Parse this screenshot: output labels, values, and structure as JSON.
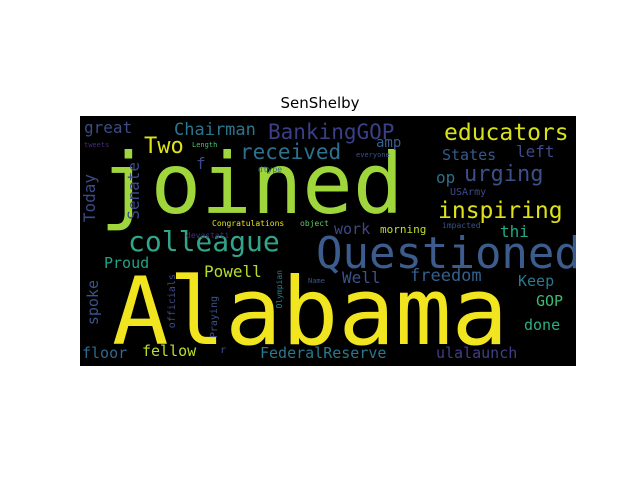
{
  "figure": {
    "title": "SenShelby"
  },
  "wordcloud": {
    "colormap": "viridis",
    "background": "#000000",
    "words": [
      {
        "text": "Alabama",
        "color": "#f0e51f"
      },
      {
        "text": "joined",
        "color": "#9fd63b"
      },
      {
        "text": "Questioned",
        "color": "#3b5c8c"
      },
      {
        "text": "colleague",
        "color": "#31a48a"
      },
      {
        "text": "inspiring",
        "color": "#dfe218"
      },
      {
        "text": "educators",
        "color": "#d8e21c"
      },
      {
        "text": "urging",
        "color": "#3c4f8a"
      },
      {
        "text": "received",
        "color": "#2c718e"
      },
      {
        "text": "BankingGOP",
        "color": "#3a3f86"
      },
      {
        "text": "Chairman",
        "color": "#2b758e"
      },
      {
        "text": "great",
        "color": "#3c4c87"
      },
      {
        "text": "Two",
        "color": "#dde318"
      },
      {
        "text": "Senate",
        "color": "#3b4a8a"
      },
      {
        "text": "Today",
        "color": "#3c4b88"
      },
      {
        "text": "States",
        "color": "#36598c"
      },
      {
        "text": "left",
        "color": "#3e4989"
      },
      {
        "text": "op",
        "color": "#2d708e"
      },
      {
        "text": "amp",
        "color": "#3a5e8c"
      },
      {
        "text": "thi",
        "color": "#22a884"
      },
      {
        "text": "work",
        "color": "#3f4788"
      },
      {
        "text": "Proud",
        "color": "#20a386"
      },
      {
        "text": "Powell",
        "color": "#b5de2b"
      },
      {
        "text": "Well",
        "color": "#3b528b"
      },
      {
        "text": "freedom",
        "color": "#34608d"
      },
      {
        "text": "Keep",
        "color": "#2a788e"
      },
      {
        "text": "spoke",
        "color": "#3a548c"
      },
      {
        "text": "GOP",
        "color": "#3bbb75"
      },
      {
        "text": "done",
        "color": "#2ab07f"
      },
      {
        "text": "floor",
        "color": "#30688e"
      },
      {
        "text": "fellow",
        "color": "#b8de29"
      },
      {
        "text": "FederalReserve",
        "color": "#2a788e"
      },
      {
        "text": "ulalaunch",
        "color": "#433e85"
      },
      {
        "text": "morning",
        "color": "#c2df23"
      },
      {
        "text": "f",
        "color": "#3e4989"
      },
      {
        "text": "USArmy",
        "color": "#3e4989"
      },
      {
        "text": "Congratulations",
        "color": "#e5e419"
      },
      {
        "text": "object",
        "color": "#5ac864"
      },
      {
        "text": "impacted",
        "color": "#3b528b"
      },
      {
        "text": "dtype",
        "color": "#2c718e"
      },
      {
        "text": "Length",
        "color": "#4ac16d"
      },
      {
        "text": "devastati",
        "color": "#472d7b"
      },
      {
        "text": "Praying",
        "color": "#3b528b"
      },
      {
        "text": "officials",
        "color": "#3e4a89"
      },
      {
        "text": "Olympian",
        "color": "#26828e"
      },
      {
        "text": "Name",
        "color": "#3b528b"
      },
      {
        "text": "everyone",
        "color": "#3b528b"
      },
      {
        "text": "tweets",
        "color": "#472c7a"
      },
      {
        "text": "r",
        "color": "#3b528b"
      }
    ]
  }
}
